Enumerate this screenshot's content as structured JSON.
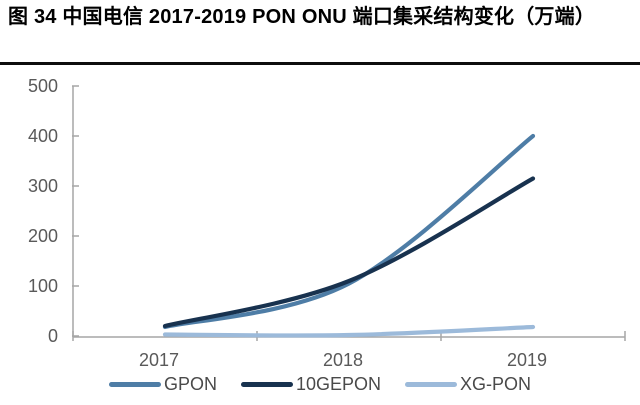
{
  "figure": {
    "title": "图 34 中国电信 2017-2019 PON ONU 端口集采结构变化（万端）"
  },
  "chart_data": {
    "type": "line",
    "smooth": true,
    "title": "中国电信 2017-2019 PON ONU 端口集采结构变化",
    "unit": "万端",
    "categories": [
      "2017",
      "2018",
      "2019"
    ],
    "series": [
      {
        "name": "GPON",
        "color": "#4e7da6",
        "values": [
          18,
          105,
          400
        ]
      },
      {
        "name": "10GEPON",
        "color": "#18324f",
        "values": [
          20,
          110,
          315
        ]
      },
      {
        "name": "XG-PON",
        "color": "#9cbada",
        "values": [
          3,
          2,
          18
        ]
      }
    ],
    "xlabel": "",
    "ylabel": "",
    "ylim": [
      0,
      500
    ],
    "y_ticks": [
      0,
      100,
      200,
      300,
      400,
      500
    ],
    "grid": false,
    "legend_position": "bottom",
    "axis_color": "#a6a6a6",
    "tick_label_color": "#595959"
  }
}
